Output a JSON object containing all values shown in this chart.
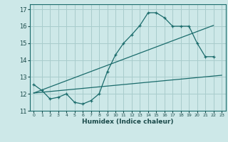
{
  "title": "",
  "xlabel": "Humidex (Indice chaleur)",
  "bg_color": "#cde8e8",
  "grid_color": "#a8cccc",
  "line_color": "#1a6b6b",
  "xlim": [
    -0.5,
    23.5
  ],
  "ylim": [
    11.0,
    17.3
  ],
  "xticks": [
    0,
    1,
    2,
    3,
    4,
    5,
    6,
    7,
    8,
    9,
    10,
    11,
    12,
    13,
    14,
    15,
    16,
    17,
    18,
    19,
    20,
    21,
    22,
    23
  ],
  "yticks": [
    11,
    12,
    13,
    14,
    15,
    16,
    17
  ],
  "line1_x": [
    0,
    1,
    2,
    3,
    4,
    5,
    6,
    7,
    8,
    9,
    10,
    11,
    12,
    13,
    14,
    15,
    16,
    17,
    18,
    19,
    20,
    21,
    22
  ],
  "line1_y": [
    12.55,
    12.2,
    11.7,
    11.8,
    12.0,
    11.5,
    11.4,
    11.6,
    12.0,
    13.3,
    14.3,
    15.0,
    15.5,
    16.05,
    16.8,
    16.8,
    16.5,
    16.0,
    16.0,
    16.0,
    15.0,
    14.2,
    14.2
  ],
  "line2_x": [
    0,
    23
  ],
  "line2_y": [
    12.05,
    13.1
  ],
  "line3_x": [
    0,
    22
  ],
  "line3_y": [
    12.05,
    16.05
  ]
}
